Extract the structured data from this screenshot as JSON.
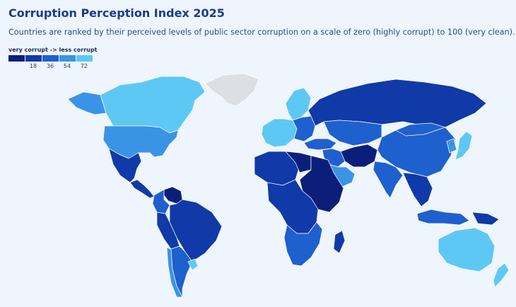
{
  "header": {
    "title": "Corruption Perception Index 2025",
    "subtitle": "Countries are ranked by their perceived levels of public sector corruption on a scale of zero (highly corrupt) to 100 (very clean)."
  },
  "legend": {
    "title": "very corrupt -> less corrupt",
    "colors": [
      "#0b1f7a",
      "#0f3aa8",
      "#1f60cf",
      "#3a94e6",
      "#5ec8f5"
    ],
    "ticks": [
      "18",
      "36",
      "54",
      "72"
    ]
  },
  "map": {
    "regions": [
      {
        "name": "greenland",
        "color": "#dcdfe3"
      },
      {
        "name": "canada",
        "color": "#5ec8f5"
      },
      {
        "name": "alaska",
        "color": "#3a94e6"
      },
      {
        "name": "usa",
        "color": "#3a94e6"
      },
      {
        "name": "mexico",
        "color": "#0f3aa8"
      },
      {
        "name": "central-america",
        "color": "#0f3aa8"
      },
      {
        "name": "venezuela",
        "color": "#0b1f7a"
      },
      {
        "name": "colombia",
        "color": "#1f60cf"
      },
      {
        "name": "brazil",
        "color": "#0f3aa8"
      },
      {
        "name": "peru-bolivia",
        "color": "#0f3aa8"
      },
      {
        "name": "chile",
        "color": "#3a94e6"
      },
      {
        "name": "argentina",
        "color": "#1f60cf"
      },
      {
        "name": "uruguay",
        "color": "#5ec8f5"
      },
      {
        "name": "scandinavia",
        "color": "#5ec8f5"
      },
      {
        "name": "western-europe",
        "color": "#5ec8f5"
      },
      {
        "name": "eastern-europe",
        "color": "#1f60cf"
      },
      {
        "name": "russia",
        "color": "#0f3aa8"
      },
      {
        "name": "turkey",
        "color": "#1f60cf"
      },
      {
        "name": "middle-east",
        "color": "#1f60cf"
      },
      {
        "name": "saudi-arabia",
        "color": "#3a94e6"
      },
      {
        "name": "iran-afghanistan",
        "color": "#0b1f7a"
      },
      {
        "name": "central-asia",
        "color": "#1f60cf"
      },
      {
        "name": "china",
        "color": "#1f60cf"
      },
      {
        "name": "mongolia",
        "color": "#1f60cf"
      },
      {
        "name": "india",
        "color": "#1f60cf"
      },
      {
        "name": "southeast-asia",
        "color": "#0f3aa8"
      },
      {
        "name": "japan",
        "color": "#5ec8f5"
      },
      {
        "name": "korea",
        "color": "#3a94e6"
      },
      {
        "name": "north-africa",
        "color": "#0f3aa8"
      },
      {
        "name": "libya",
        "color": "#0b1f7a"
      },
      {
        "name": "sahel-east-africa",
        "color": "#0b1f7a"
      },
      {
        "name": "central-africa",
        "color": "#0f3aa8"
      },
      {
        "name": "southern-africa",
        "color": "#1f60cf"
      },
      {
        "name": "madagascar",
        "color": "#0f3aa8"
      },
      {
        "name": "indonesia",
        "color": "#1f60cf"
      },
      {
        "name": "papua",
        "color": "#0f3aa8"
      },
      {
        "name": "australia",
        "color": "#5ec8f5"
      },
      {
        "name": "new-zealand",
        "color": "#5ec8f5"
      }
    ]
  }
}
